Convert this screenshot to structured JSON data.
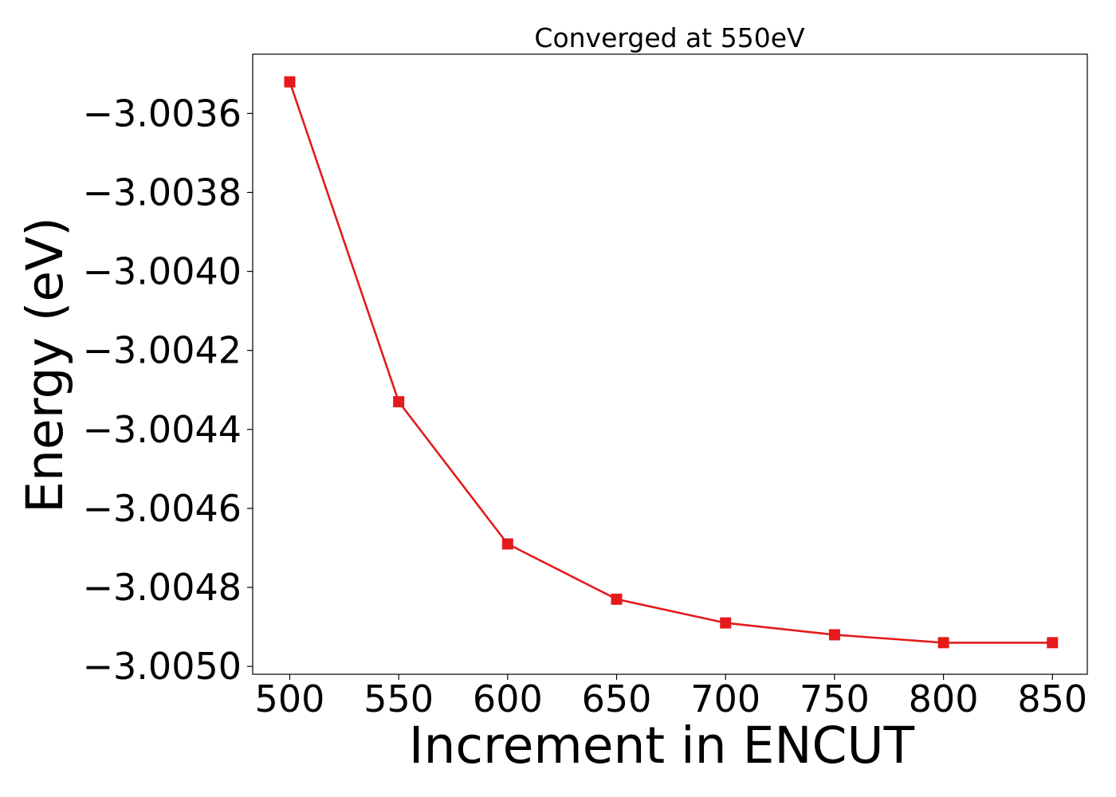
{
  "chart_data": {
    "type": "line",
    "title": "Converged at 550eV",
    "xlabel": "Increment in ENCUT",
    "ylabel": "Energy (eV)",
    "xlim": [
      483,
      866
    ],
    "ylim": [
      -3.00502,
      -3.00345
    ],
    "x_ticks": [
      500,
      550,
      600,
      650,
      700,
      750,
      800,
      850
    ],
    "x_tick_labels": [
      "500",
      "550",
      "600",
      "650",
      "700",
      "750",
      "800",
      "850"
    ],
    "y_ticks": [
      -3.0036,
      -3.0038,
      -3.004,
      -3.0042,
      -3.0044,
      -3.0046,
      -3.0048,
      -3.005
    ],
    "y_tick_labels": [
      "−3.0036",
      "−3.0038",
      "−3.0040",
      "−3.0042",
      "−3.0044",
      "−3.0046",
      "−3.0048",
      "−3.0050"
    ],
    "grid": false,
    "series": [
      {
        "color": "#e41a1c",
        "marker": "square",
        "x": [
          500,
          550,
          600,
          650,
          700,
          750,
          800,
          850
        ],
        "y": [
          -3.00352,
          -3.00433,
          -3.00469,
          -3.00483,
          -3.00489,
          -3.00492,
          -3.00494,
          -3.00494
        ]
      }
    ]
  }
}
